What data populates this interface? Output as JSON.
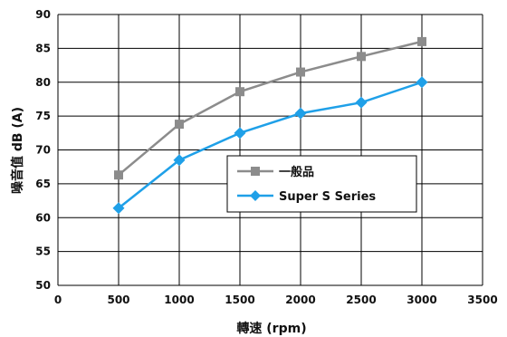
{
  "chart_data": {
    "type": "line",
    "title": "",
    "xlabel": "轉速 (rpm)",
    "ylabel": "噪音值  dB (A)",
    "xlim": [
      0,
      3500
    ],
    "ylim": [
      50,
      90
    ],
    "x_ticks": [
      0,
      500,
      1000,
      1500,
      2000,
      2500,
      3000,
      3500
    ],
    "y_ticks": [
      50,
      55,
      60,
      65,
      70,
      75,
      80,
      85,
      90
    ],
    "grid": true,
    "legend_position": "center",
    "x": [
      500,
      1000,
      1500,
      2000,
      2500,
      3000
    ],
    "series": [
      {
        "name": "一般品",
        "color": "#8c8c8c",
        "marker": "square",
        "values": [
          66.3,
          73.8,
          78.6,
          81.5,
          83.8,
          86.0
        ]
      },
      {
        "name": "Super S Series",
        "color": "#1fa0e8",
        "marker": "diamond",
        "values": [
          61.4,
          68.5,
          72.5,
          75.4,
          77.0,
          80.0
        ]
      }
    ]
  }
}
